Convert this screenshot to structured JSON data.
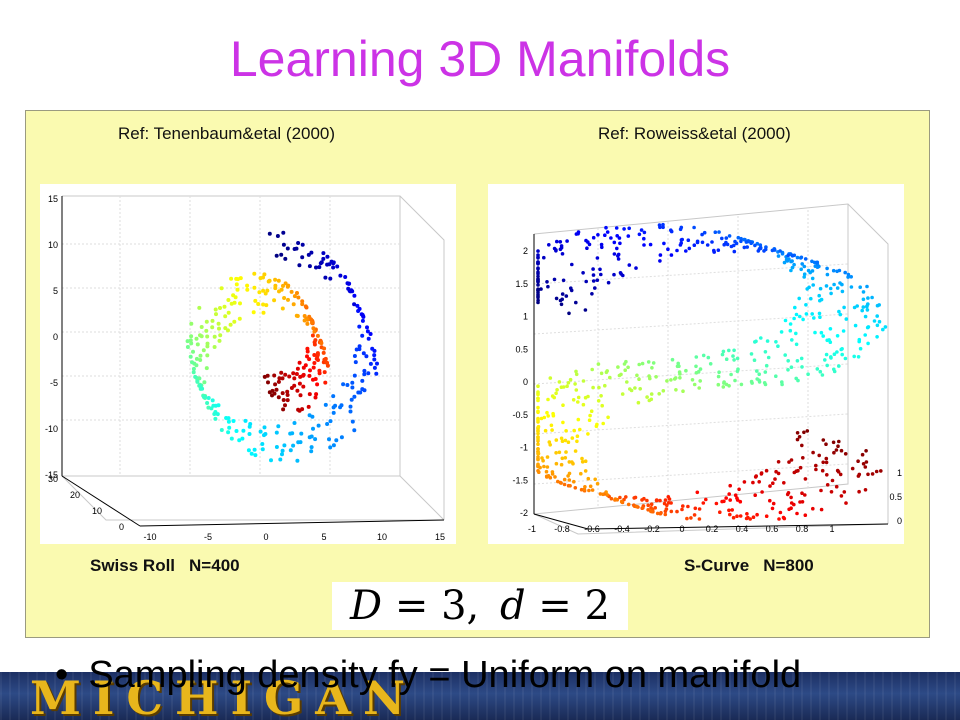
{
  "slide": {
    "title": "Learning 3D Manifolds",
    "ref_left": "Ref: Tenenbaum&etal (2000)",
    "ref_right": "Ref: Roweiss&etal (2000)",
    "label_left_name": "Swiss Roll",
    "label_left_n": "N=400",
    "label_right_name": "S-Curve",
    "label_right_n": "N=800",
    "formula_D": "D",
    "formula_D_val": "3,",
    "formula_d": "d",
    "formula_d_val": "2",
    "bullet": "Sampling density fy = Uniform on manifold",
    "banner_logo": "MICHIGAN"
  },
  "colors": {
    "title": "#cc33e6",
    "panel": "#fafab0",
    "banner": "#2d4a86",
    "logo": "#e8b61c"
  },
  "chart_data": [
    {
      "type": "scatter",
      "title": "",
      "points": 400,
      "color_map": "jet",
      "y_ticks": [
        "15",
        "10",
        "5",
        "0",
        "-5",
        "-10",
        "-15"
      ],
      "x_ticks": [
        "-10",
        "-5",
        "0",
        "5",
        "10",
        "15"
      ],
      "z_ticks": [
        "30",
        "20",
        "10",
        "0"
      ],
      "ylim": [
        -15,
        15
      ],
      "xlim": [
        -10,
        15
      ],
      "zlim": [
        0,
        30
      ],
      "grid": true
    },
    {
      "type": "scatter",
      "title": "",
      "points": 800,
      "color_map": "jet",
      "y_ticks": [
        "2",
        "1.5",
        "1",
        "0.5",
        "0",
        "-0.5",
        "-1",
        "-1.5",
        "-2"
      ],
      "x_ticks": [
        "-1",
        "-0.8",
        "-0.6",
        "-0.4",
        "-0.2",
        "0",
        "0.2",
        "0.4",
        "0.6",
        "0.8",
        "1"
      ],
      "z_ticks": [
        "1",
        "0.5",
        "0"
      ],
      "ylim": [
        -2,
        2
      ],
      "xlim": [
        -1,
        1
      ],
      "zlim": [
        0,
        1
      ],
      "grid": true
    }
  ]
}
